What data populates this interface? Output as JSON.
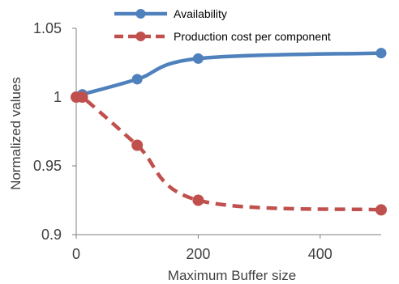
{
  "chart_data": {
    "type": "line",
    "xlabel": "Maximum Buffer size",
    "ylabel": "Normalized  values",
    "xlim": [
      0,
      500
    ],
    "ylim": [
      0.9,
      1.05
    ],
    "xticks": [
      0,
      200,
      400
    ],
    "xtick_labels": [
      "0",
      "200",
      "400"
    ],
    "yticks": [
      0.9,
      0.95,
      1,
      1.05
    ],
    "ytick_labels": [
      "0.9",
      "0.95",
      "1",
      "1.05"
    ],
    "grid": false,
    "legend": "top",
    "series": [
      {
        "name": "Availability",
        "color": "#4F81BD",
        "style": "solid",
        "x": [
          10,
          100,
          200,
          500
        ],
        "y": [
          1.002,
          1.013,
          1.028,
          1.032
        ]
      },
      {
        "name": "Production cost per component",
        "color": "#C0504D",
        "style": "dashed",
        "x": [
          0,
          10,
          100,
          200,
          500
        ],
        "y": [
          1.0,
          1.0,
          0.965,
          0.925,
          0.918
        ]
      }
    ]
  }
}
